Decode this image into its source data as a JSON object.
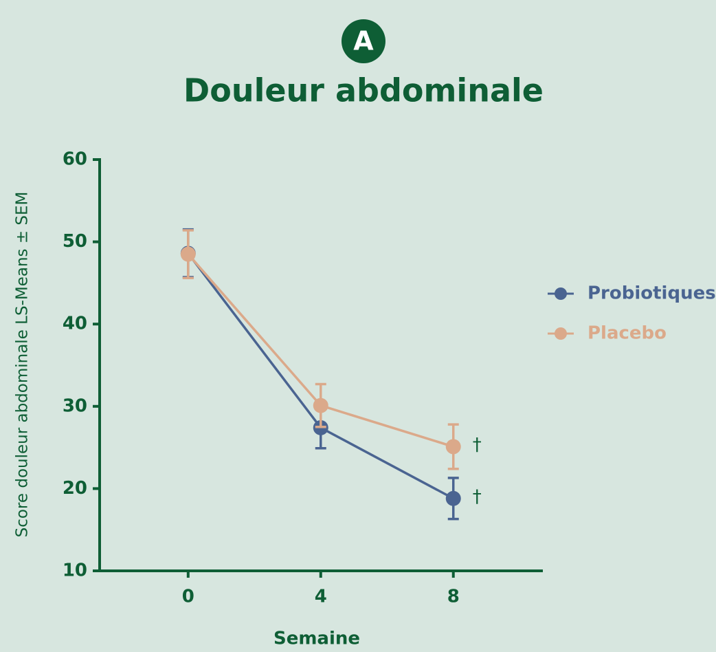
{
  "badge": "A",
  "chart_data": {
    "type": "line",
    "title": "Douleur abdominale",
    "x_label": "Semaine",
    "y_label": "Score douleur abdominale LS-Means ± SEM",
    "x": [
      0,
      4,
      8
    ],
    "xlim": [
      -2.67,
      10.7
    ],
    "xticks": [
      0,
      4,
      8
    ],
    "ylim": [
      10,
      60
    ],
    "yticks": [
      10,
      20,
      30,
      40,
      50,
      60
    ],
    "grid": false,
    "legend": "right",
    "series": [
      {
        "name": "Probiotiques",
        "color": "#4a6491",
        "values": [
          48.6,
          27.4,
          18.8
        ],
        "errors": [
          2.9,
          2.5,
          2.5
        ],
        "point_labels": [
          null,
          null,
          "†"
        ]
      },
      {
        "name": "Placebo",
        "color": "#dba98a",
        "values": [
          48.5,
          30.1,
          25.1
        ],
        "errors": [
          2.9,
          2.6,
          2.7
        ],
        "point_labels": [
          null,
          null,
          "†"
        ]
      }
    ]
  }
}
